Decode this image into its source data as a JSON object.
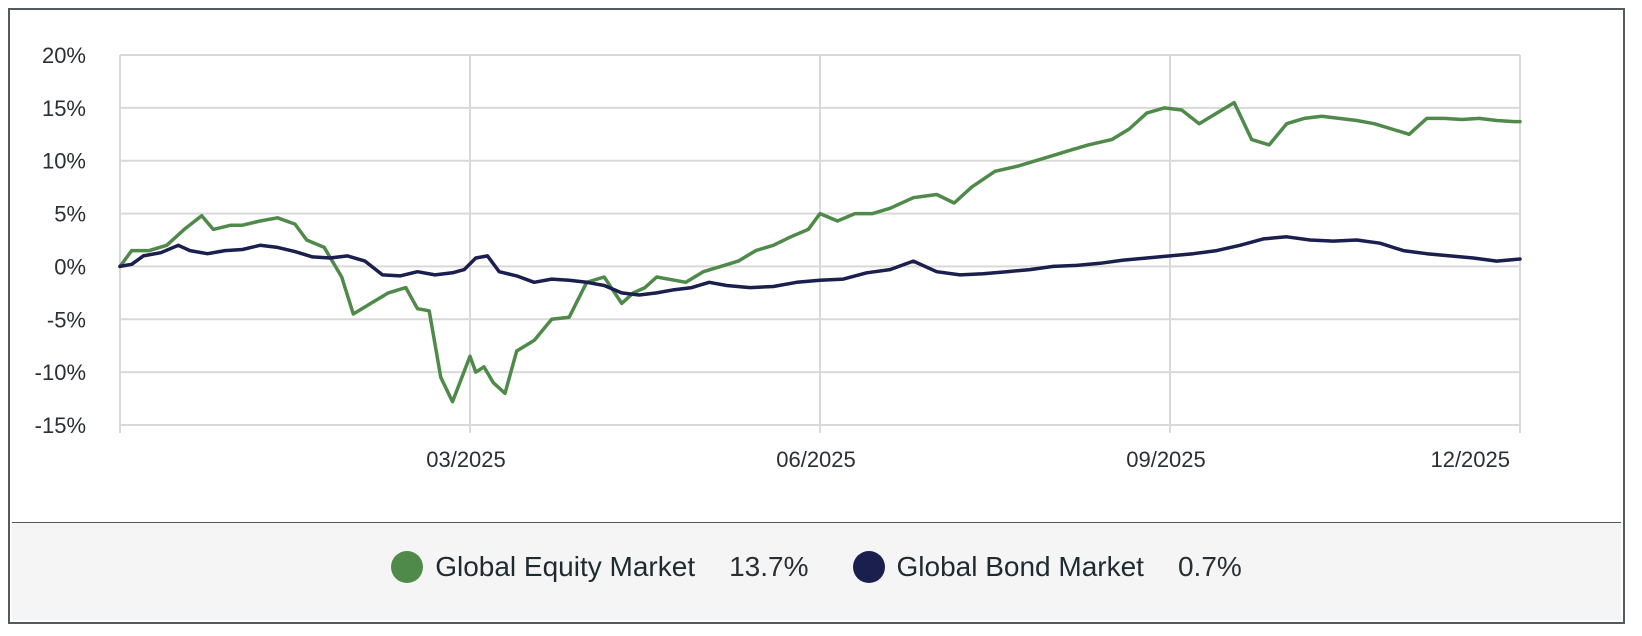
{
  "chart_data": {
    "type": "line",
    "title": "",
    "xlabel": "",
    "ylabel": "",
    "ylim": [
      -15,
      20
    ],
    "y_ticks": [
      "20%",
      "15%",
      "10%",
      "5%",
      "0%",
      "-5%",
      "-10%",
      "-15%"
    ],
    "y_tick_values": [
      20,
      15,
      10,
      5,
      0,
      -5,
      -10,
      -15
    ],
    "xlim": [
      0,
      12
    ],
    "x_ticks": [
      "03/2025",
      "06/2025",
      "09/2025",
      "12/2025"
    ],
    "x_tick_values": [
      3,
      6,
      9,
      12
    ],
    "grid": true,
    "legend_position": "bottom",
    "series": [
      {
        "name": "Global Equity Market",
        "color": "#4f8a4a",
        "final_label": "13.7%",
        "x": [
          0,
          0.1,
          0.25,
          0.4,
          0.55,
          0.7,
          0.8,
          0.95,
          1.05,
          1.2,
          1.35,
          1.5,
          1.6,
          1.75,
          1.9,
          2.0,
          2.15,
          2.3,
          2.45,
          2.55,
          2.65,
          2.75,
          2.85,
          3.0,
          3.05,
          3.12,
          3.2,
          3.3,
          3.4,
          3.55,
          3.7,
          3.85,
          4.0,
          4.15,
          4.3,
          4.4,
          4.5,
          4.6,
          4.75,
          4.85,
          5.0,
          5.15,
          5.3,
          5.45,
          5.6,
          5.75,
          5.9,
          6.0,
          6.15,
          6.3,
          6.45,
          6.6,
          6.8,
          7.0,
          7.15,
          7.3,
          7.5,
          7.7,
          7.85,
          8.0,
          8.15,
          8.3,
          8.5,
          8.65,
          8.8,
          8.95,
          9.1,
          9.25,
          9.4,
          9.55,
          9.7,
          9.85,
          10.0,
          10.15,
          10.3,
          10.45,
          10.6,
          10.75,
          10.9,
          11.05,
          11.2,
          11.35,
          11.5,
          11.65,
          11.8,
          11.95,
          12.0
        ],
        "y": [
          0,
          1.5,
          1.5,
          2.0,
          3.5,
          4.8,
          3.5,
          3.9,
          3.9,
          4.3,
          4.6,
          4.0,
          2.5,
          1.8,
          -1.0,
          -4.5,
          -3.5,
          -2.5,
          -2.0,
          -4.0,
          -4.2,
          -10.5,
          -12.8,
          -8.5,
          -10.0,
          -9.5,
          -11.0,
          -12.0,
          -8.0,
          -7.0,
          -5.0,
          -4.8,
          -1.5,
          -1.0,
          -3.5,
          -2.5,
          -2.0,
          -1.0,
          -1.3,
          -1.5,
          -0.5,
          0.0,
          0.5,
          1.5,
          2.0,
          2.8,
          3.5,
          5.0,
          4.3,
          5.0,
          5.0,
          5.5,
          6.5,
          6.8,
          6.0,
          7.5,
          9.0,
          9.5,
          10.0,
          10.5,
          11.0,
          11.5,
          12.0,
          13.0,
          14.5,
          15.0,
          14.8,
          13.5,
          14.5,
          15.5,
          12.0,
          11.5,
          13.5,
          14.0,
          14.2,
          14.0,
          13.8,
          13.5,
          13.0,
          12.5,
          14.0,
          14.0,
          13.9,
          14.0,
          13.8,
          13.7,
          13.7
        ]
      },
      {
        "name": "Global Bond Market",
        "color": "#1b1f4d",
        "final_label": "0.7%",
        "x": [
          0,
          0.1,
          0.2,
          0.35,
          0.5,
          0.6,
          0.75,
          0.9,
          1.05,
          1.2,
          1.35,
          1.5,
          1.65,
          1.8,
          1.95,
          2.1,
          2.25,
          2.4,
          2.55,
          2.7,
          2.85,
          2.95,
          3.05,
          3.15,
          3.25,
          3.4,
          3.55,
          3.7,
          3.85,
          4.0,
          4.15,
          4.3,
          4.45,
          4.6,
          4.75,
          4.9,
          5.05,
          5.2,
          5.4,
          5.6,
          5.8,
          6.0,
          6.2,
          6.4,
          6.6,
          6.8,
          7.0,
          7.2,
          7.4,
          7.6,
          7.8,
          8.0,
          8.2,
          8.4,
          8.6,
          8.8,
          9.0,
          9.2,
          9.4,
          9.6,
          9.8,
          10.0,
          10.2,
          10.4,
          10.6,
          10.8,
          11.0,
          11.2,
          11.4,
          11.6,
          11.8,
          12.0
        ],
        "y": [
          0,
          0.2,
          1.0,
          1.3,
          2.0,
          1.5,
          1.2,
          1.5,
          1.6,
          2.0,
          1.8,
          1.4,
          0.9,
          0.8,
          1.0,
          0.5,
          -0.8,
          -0.9,
          -0.5,
          -0.8,
          -0.6,
          -0.3,
          0.8,
          1.0,
          -0.5,
          -0.9,
          -1.5,
          -1.2,
          -1.3,
          -1.5,
          -1.8,
          -2.5,
          -2.7,
          -2.5,
          -2.2,
          -2.0,
          -1.5,
          -1.8,
          -2.0,
          -1.9,
          -1.5,
          -1.3,
          -1.2,
          -0.6,
          -0.3,
          0.5,
          -0.5,
          -0.8,
          -0.7,
          -0.5,
          -0.3,
          0.0,
          0.1,
          0.3,
          0.6,
          0.8,
          1.0,
          1.2,
          1.5,
          2.0,
          2.6,
          2.8,
          2.5,
          2.4,
          2.5,
          2.2,
          1.5,
          1.2,
          1.0,
          0.8,
          0.5,
          0.7
        ]
      }
    ]
  }
}
